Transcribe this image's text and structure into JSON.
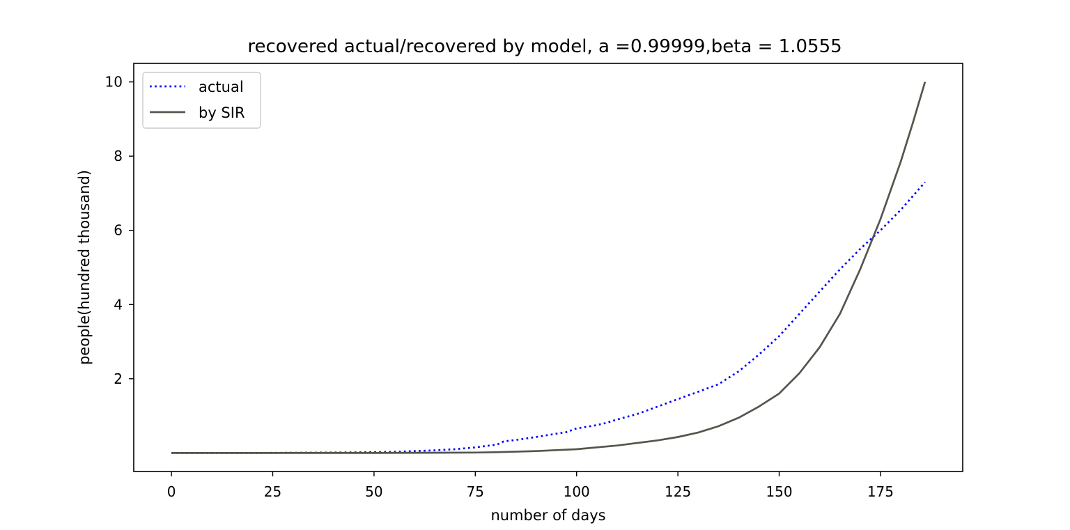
{
  "chart_data": {
    "type": "line",
    "title": "recovered actual/recovered by model, a =0.99999,beta = 1.0555",
    "xlabel": "number of days",
    "ylabel": "people(hundred thousand)",
    "xlim": [
      -9.3,
      195.3
    ],
    "ylim": [
      -0.5,
      10.5
    ],
    "xticks": [
      0,
      25,
      50,
      75,
      100,
      125,
      150,
      175
    ],
    "yticks": [
      2,
      4,
      6,
      8,
      10
    ],
    "grid": false,
    "legend_position": "upper-left",
    "series": [
      {
        "name": "actual",
        "style": "dotted",
        "color": "#0000ff",
        "x": [
          0,
          20,
          40,
          50,
          55,
          60,
          65,
          70,
          75,
          80,
          81,
          82,
          85,
          90,
          95,
          98,
          99,
          100,
          105,
          107,
          110,
          115,
          120,
          125,
          130,
          135,
          140,
          145,
          150,
          155,
          160,
          165,
          170,
          175,
          180,
          186
        ],
        "y": [
          0,
          0,
          0.01,
          0.02,
          0.03,
          0.05,
          0.07,
          0.1,
          0.15,
          0.22,
          0.25,
          0.31,
          0.35,
          0.43,
          0.52,
          0.57,
          0.63,
          0.66,
          0.75,
          0.8,
          0.9,
          1.05,
          1.25,
          1.45,
          1.65,
          1.85,
          2.2,
          2.65,
          3.15,
          3.75,
          4.35,
          4.95,
          5.5,
          6.0,
          6.55,
          7.3
        ]
      },
      {
        "name": "by SIR",
        "style": "solid",
        "color": "#55554d",
        "x": [
          0,
          25,
          50,
          75,
          80,
          90,
          100,
          110,
          120,
          125,
          130,
          135,
          140,
          145,
          150,
          155,
          160,
          165,
          170,
          175,
          180,
          183,
          186
        ],
        "y": [
          0,
          0,
          0,
          0.01,
          0.02,
          0.05,
          0.1,
          0.2,
          0.34,
          0.43,
          0.55,
          0.72,
          0.95,
          1.25,
          1.6,
          2.15,
          2.85,
          3.75,
          4.95,
          6.3,
          7.85,
          8.9,
          10.0
        ]
      }
    ]
  }
}
